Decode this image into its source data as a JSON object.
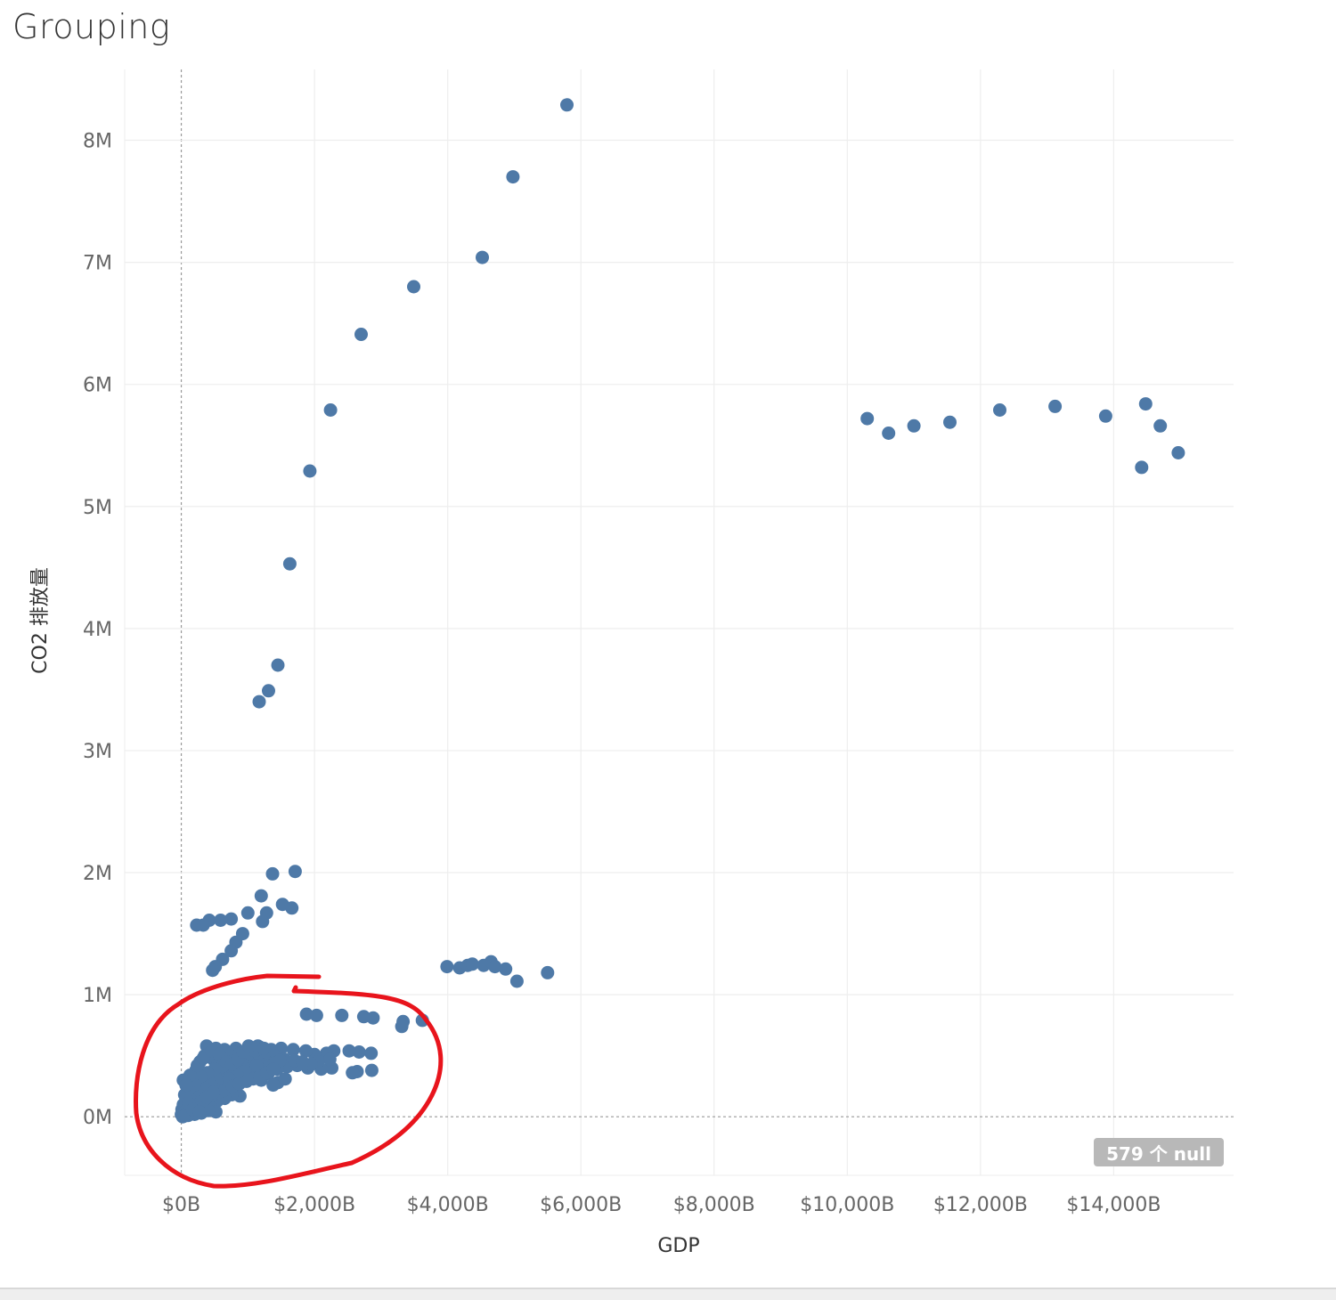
{
  "title": "Grouping",
  "null_badge": "579 个 null",
  "colors": {
    "point": "#4e79a7",
    "annotation": "#e8141c",
    "grid": "#eeeeee",
    "zero_line": "#999999"
  },
  "chart_data": {
    "type": "scatter",
    "title": "Grouping",
    "xlabel": "GDP",
    "ylabel": "CO2 排放量",
    "xlim": [
      -850,
      15800
    ],
    "ylim": [
      -480000,
      8580000
    ],
    "grid": true,
    "x_ticks": [
      0,
      2000,
      4000,
      6000,
      8000,
      10000,
      12000,
      14000
    ],
    "x_tick_labels": [
      "$0B",
      "$2,000B",
      "$4,000B",
      "$6,000B",
      "$8,000B",
      "$10,000B",
      "$12,000B",
      "$14,000B"
    ],
    "y_ticks": [
      0,
      1000000,
      2000000,
      3000000,
      4000000,
      5000000,
      6000000,
      7000000,
      8000000
    ],
    "y_tick_labels": [
      "0M",
      "1M",
      "2M",
      "3M",
      "4M",
      "5M",
      "6M",
      "7M",
      "8M"
    ],
    "x_units": "billion USD",
    "y_units": "CO2 emissions",
    "points": [
      [
        5790,
        8290000
      ],
      [
        4980,
        7700000
      ],
      [
        4520,
        7040000
      ],
      [
        3490,
        6800000
      ],
      [
        2700,
        6410000
      ],
      [
        2240,
        5790000
      ],
      [
        1930,
        5290000
      ],
      [
        1630,
        4530000
      ],
      [
        1450,
        3700000
      ],
      [
        1310,
        3490000
      ],
      [
        1170,
        3400000
      ],
      [
        10300,
        5720000
      ],
      [
        10620,
        5600000
      ],
      [
        11000,
        5660000
      ],
      [
        11540,
        5690000
      ],
      [
        12290,
        5790000
      ],
      [
        13120,
        5820000
      ],
      [
        13880,
        5740000
      ],
      [
        14480,
        5840000
      ],
      [
        14700,
        5660000
      ],
      [
        14420,
        5320000
      ],
      [
        14970,
        5440000
      ],
      [
        1710,
        2010000
      ],
      [
        1370,
        1990000
      ],
      [
        1200,
        1810000
      ],
      [
        1520,
        1740000
      ],
      [
        1660,
        1710000
      ],
      [
        1280,
        1670000
      ],
      [
        1220,
        1600000
      ],
      [
        1000,
        1670000
      ],
      [
        750,
        1620000
      ],
      [
        590,
        1610000
      ],
      [
        420,
        1610000
      ],
      [
        330,
        1570000
      ],
      [
        230,
        1570000
      ],
      [
        920,
        1500000
      ],
      [
        820,
        1430000
      ],
      [
        750,
        1360000
      ],
      [
        620,
        1290000
      ],
      [
        510,
        1230000
      ],
      [
        470,
        1200000
      ],
      [
        3990,
        1230000
      ],
      [
        4180,
        1220000
      ],
      [
        4300,
        1240000
      ],
      [
        4370,
        1250000
      ],
      [
        4540,
        1240000
      ],
      [
        4650,
        1270000
      ],
      [
        4710,
        1230000
      ],
      [
        4870,
        1210000
      ],
      [
        5040,
        1110000
      ],
      [
        5500,
        1180000
      ],
      [
        1880,
        840000
      ],
      [
        2030,
        830000
      ],
      [
        2410,
        830000
      ],
      [
        2740,
        820000
      ],
      [
        2880,
        810000
      ],
      [
        3330,
        780000
      ],
      [
        3310,
        740000
      ],
      [
        3620,
        790000
      ],
      [
        2850,
        520000
      ],
      [
        2670,
        530000
      ],
      [
        2520,
        540000
      ],
      [
        2290,
        540000
      ],
      [
        2180,
        520000
      ],
      [
        2000,
        510000
      ],
      [
        1870,
        540000
      ],
      [
        1680,
        550000
      ],
      [
        1500,
        560000
      ],
      [
        1350,
        550000
      ],
      [
        1180,
        570000
      ],
      [
        1000,
        560000
      ],
      [
        820,
        560000
      ],
      [
        650,
        550000
      ],
      [
        520,
        560000
      ],
      [
        380,
        580000
      ],
      [
        2860,
        380000
      ],
      [
        2640,
        370000
      ],
      [
        2570,
        360000
      ],
      [
        2260,
        400000
      ],
      [
        2100,
        390000
      ],
      [
        1900,
        400000
      ],
      [
        1740,
        420000
      ],
      [
        1590,
        410000
      ],
      [
        1440,
        390000
      ],
      [
        1300,
        350000
      ],
      [
        1180,
        380000
      ],
      [
        1050,
        400000
      ],
      [
        900,
        410000
      ],
      [
        780,
        380000
      ],
      [
        650,
        360000
      ],
      [
        540,
        340000
      ],
      [
        430,
        320000
      ],
      [
        340,
        300000
      ],
      [
        260,
        280000
      ],
      [
        1450,
        280000
      ],
      [
        1560,
        310000
      ],
      [
        1380,
        260000
      ],
      [
        1200,
        300000
      ],
      [
        980,
        320000
      ],
      [
        820,
        300000
      ],
      [
        700,
        280000
      ],
      [
        570,
        260000
      ],
      [
        460,
        240000
      ],
      [
        360,
        220000
      ],
      [
        280,
        200000
      ],
      [
        200,
        180000
      ],
      [
        140,
        160000
      ],
      [
        100,
        140000
      ],
      [
        60,
        120000
      ],
      [
        30,
        100000
      ],
      [
        10,
        60000
      ],
      [
        0,
        20000
      ],
      [
        20,
        0
      ],
      [
        60,
        40000
      ],
      [
        120,
        80000
      ],
      [
        180,
        120000
      ],
      [
        240,
        160000
      ],
      [
        300,
        200000
      ],
      [
        400,
        260000
      ],
      [
        500,
        300000
      ],
      [
        600,
        320000
      ],
      [
        700,
        360000
      ],
      [
        800,
        400000
      ],
      [
        900,
        430000
      ],
      [
        1000,
        450000
      ],
      [
        1100,
        470000
      ],
      [
        1200,
        480000
      ],
      [
        1300,
        490000
      ],
      [
        1400,
        500000
      ],
      [
        1550,
        470000
      ],
      [
        1700,
        460000
      ],
      [
        2230,
        470000
      ],
      [
        2050,
        450000
      ],
      [
        1950,
        430000
      ],
      [
        1820,
        450000
      ],
      [
        880,
        170000
      ],
      [
        760,
        180000
      ],
      [
        650,
        150000
      ],
      [
        540,
        130000
      ],
      [
        430,
        100000
      ],
      [
        320,
        80000
      ],
      [
        220,
        60000
      ],
      [
        150,
        40000
      ],
      [
        80,
        20000
      ],
      [
        520,
        40000
      ],
      [
        410,
        50000
      ],
      [
        300,
        30000
      ],
      [
        200,
        20000
      ],
      [
        100,
        10000
      ],
      [
        40,
        5000
      ],
      [
        150,
        300000
      ],
      [
        220,
        380000
      ],
      [
        280,
        450000
      ],
      [
        350,
        500000
      ],
      [
        420,
        520000
      ],
      [
        480,
        470000
      ],
      [
        550,
        430000
      ],
      [
        620,
        470000
      ],
      [
        700,
        500000
      ],
      [
        780,
        530000
      ],
      [
        860,
        510000
      ],
      [
        940,
        490000
      ],
      [
        1020,
        520000
      ],
      [
        1100,
        540000
      ],
      [
        1170,
        510000
      ],
      [
        1240,
        460000
      ],
      [
        1320,
        420000
      ],
      [
        1400,
        440000
      ],
      [
        1480,
        460000
      ],
      [
        1260,
        530000
      ],
      [
        1130,
        420000
      ],
      [
        960,
        370000
      ],
      [
        840,
        340000
      ],
      [
        720,
        310000
      ],
      [
        610,
        410000
      ],
      [
        500,
        390000
      ],
      [
        390,
        360000
      ],
      [
        290,
        330000
      ],
      [
        190,
        260000
      ],
      [
        110,
        220000
      ],
      [
        50,
        180000
      ],
      [
        130,
        340000
      ],
      [
        240,
        420000
      ],
      [
        330,
        480000
      ],
      [
        460,
        540000
      ],
      [
        570,
        510000
      ],
      [
        680,
        450000
      ],
      [
        760,
        430000
      ],
      [
        850,
        470000
      ],
      [
        930,
        530000
      ],
      [
        1010,
        580000
      ],
      [
        1150,
        580000
      ],
      [
        1240,
        560000
      ],
      [
        250,
        100000
      ],
      [
        350,
        140000
      ],
      [
        450,
        170000
      ],
      [
        560,
        200000
      ],
      [
        660,
        220000
      ],
      [
        770,
        250000
      ],
      [
        870,
        270000
      ],
      [
        980,
        290000
      ],
      [
        1080,
        310000
      ],
      [
        1180,
        330000
      ],
      [
        1280,
        360000
      ],
      [
        1380,
        390000
      ],
      [
        30,
        300000
      ],
      [
        70,
        260000
      ],
      [
        110,
        110000
      ],
      [
        170,
        60000
      ],
      [
        270,
        40000
      ],
      [
        380,
        160000
      ],
      [
        480,
        200000
      ]
    ]
  },
  "annotation_label": "hand-drawn red circle around the low GDP / low CO2 cluster"
}
